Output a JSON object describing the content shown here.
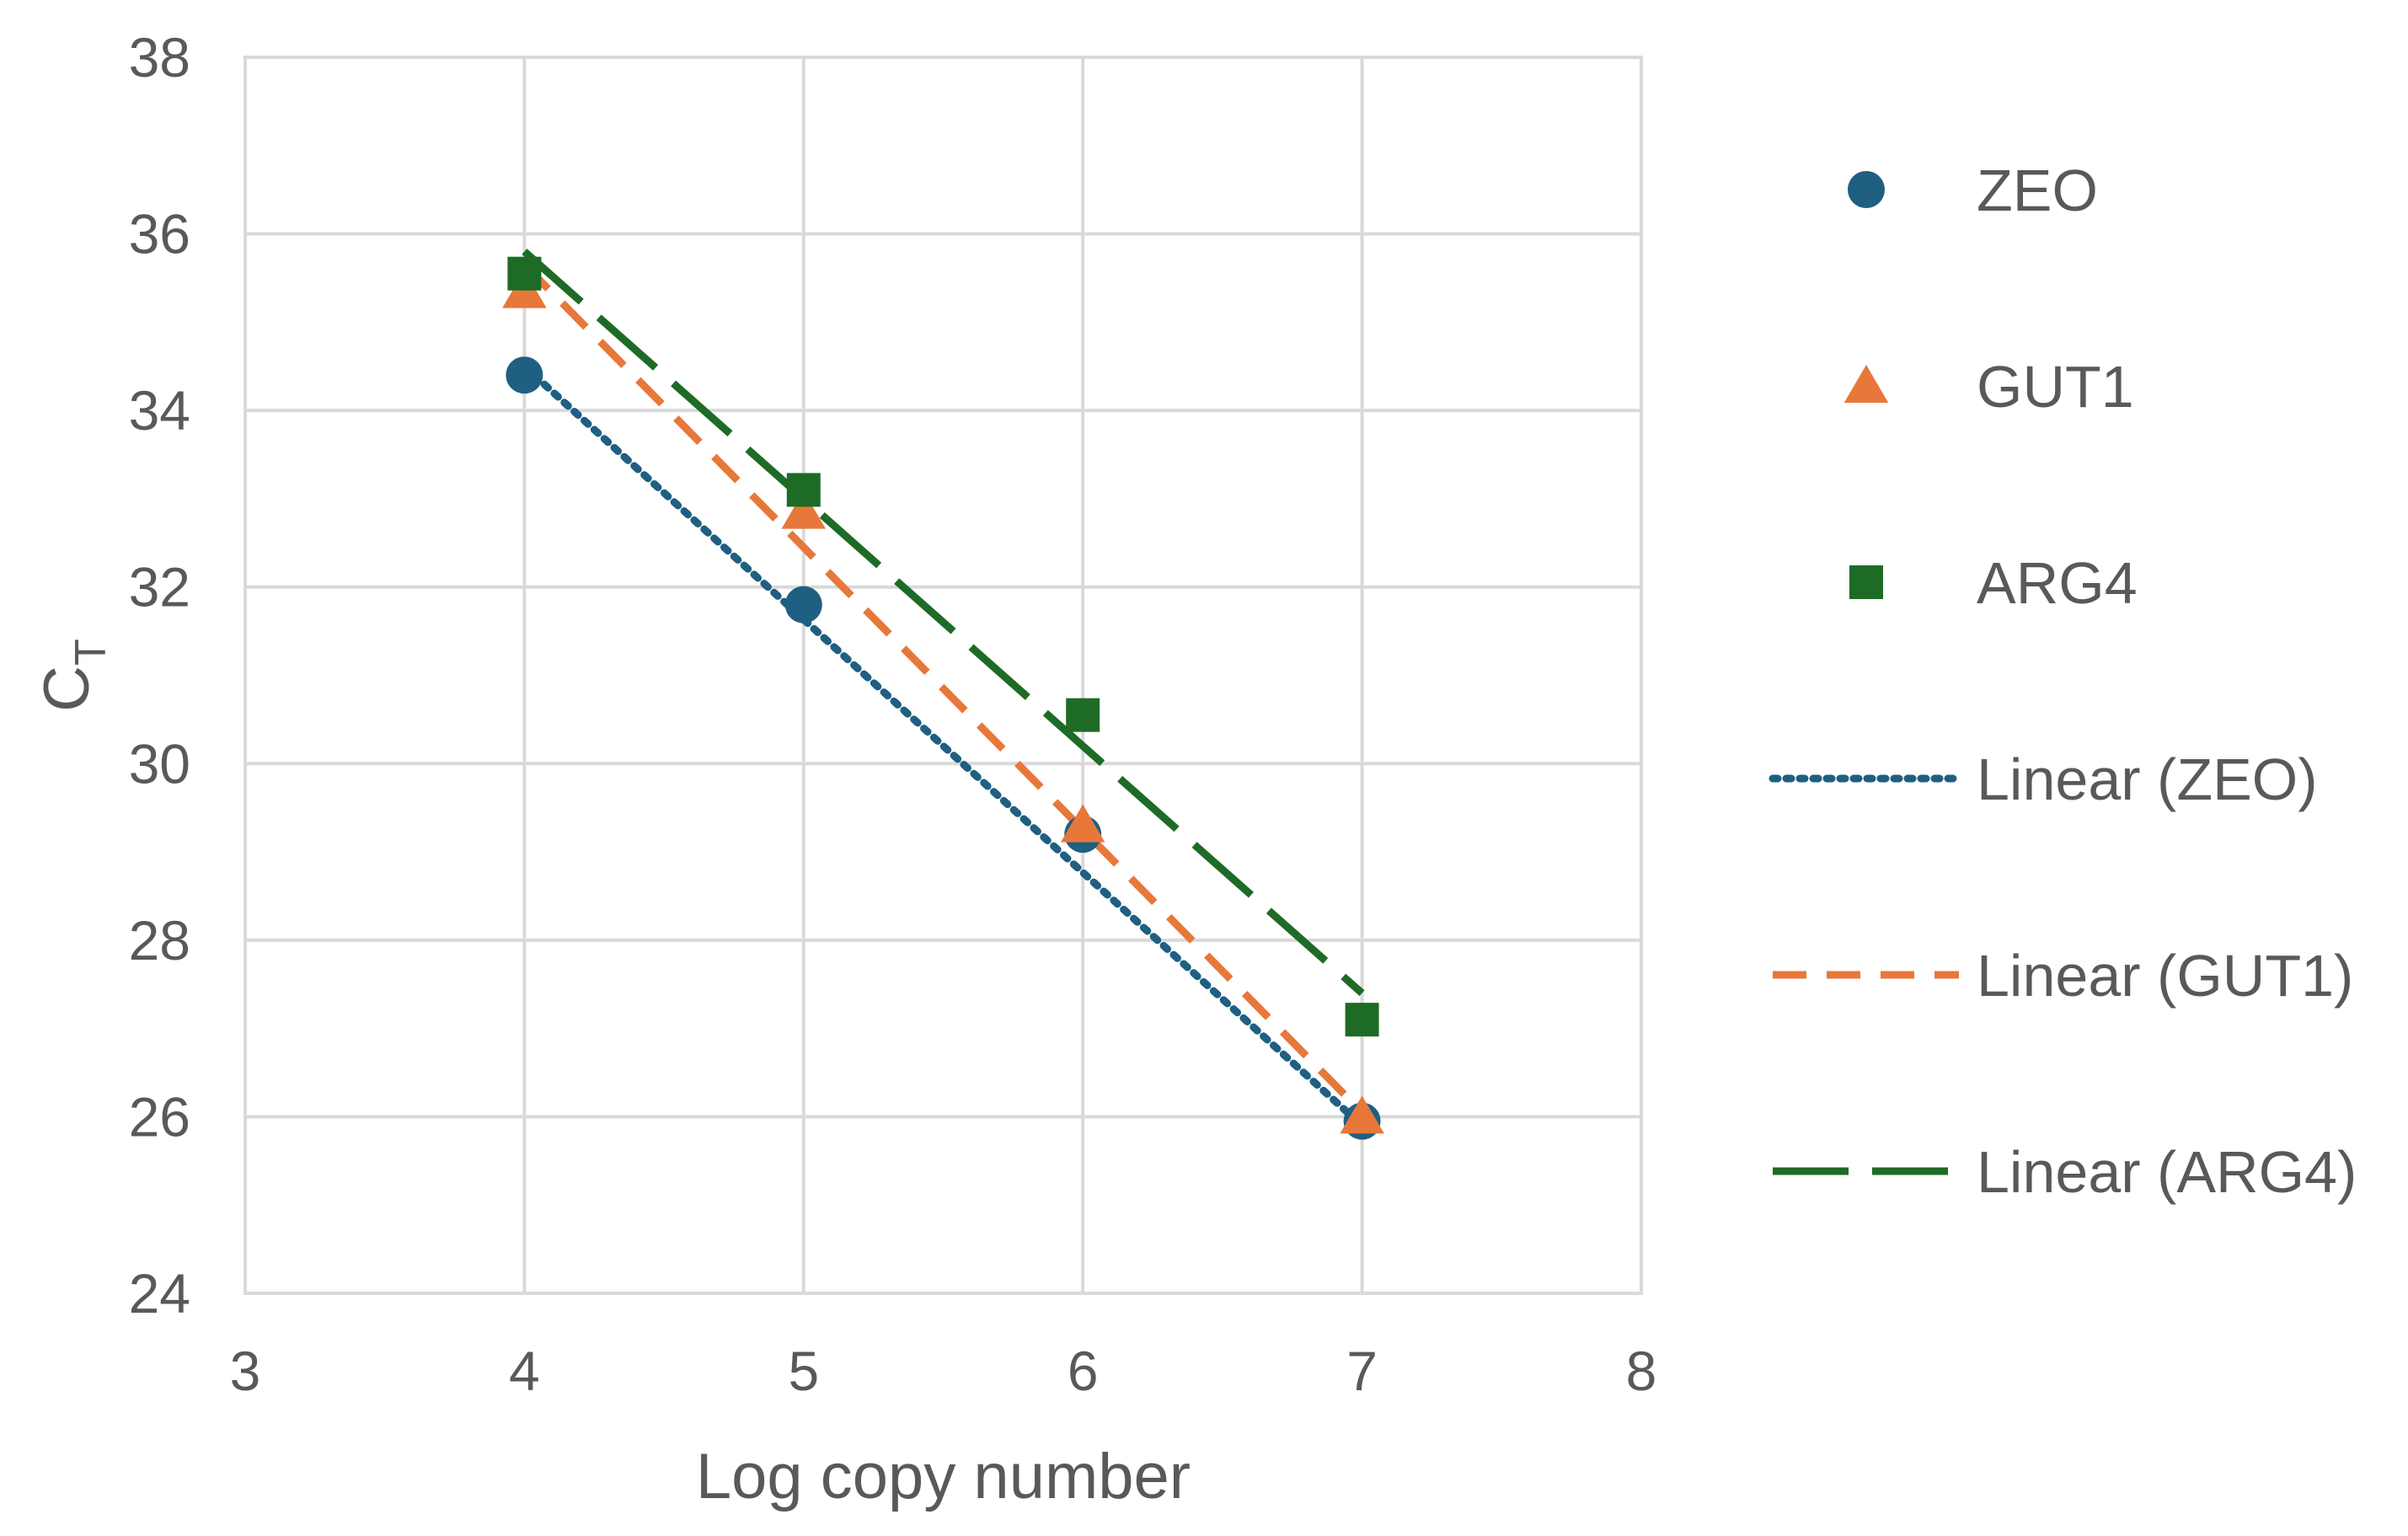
{
  "chart_data": {
    "type": "scatter",
    "xlabel": "Log copy number",
    "ylabel_main": "C",
    "ylabel_sub": "T",
    "xlim": [
      3,
      8
    ],
    "ylim": [
      24,
      38
    ],
    "xticks": [
      3,
      4,
      5,
      6,
      7,
      8
    ],
    "yticks": [
      24,
      26,
      28,
      30,
      32,
      34,
      36,
      38
    ],
    "grid": true,
    "legend_position": "right",
    "series": [
      {
        "name": "ZEO",
        "marker": "circle",
        "color": "#1f5f82",
        "x": [
          4,
          5,
          6,
          7
        ],
        "y": [
          34.4,
          31.8,
          29.2,
          25.95
        ]
      },
      {
        "name": "GUT1",
        "marker": "triangle",
        "color": "#e8773a",
        "x": [
          4,
          5,
          6,
          7
        ],
        "y": [
          35.35,
          32.85,
          29.3,
          26.0
        ]
      },
      {
        "name": "ARG4",
        "marker": "square",
        "color": "#1e6b26",
        "x": [
          4,
          5,
          6,
          7
        ],
        "y": [
          35.55,
          33.1,
          30.55,
          27.1
        ]
      }
    ],
    "trendlines": [
      {
        "name": "Linear (ZEO)",
        "color": "#1f5f82",
        "style": "dotted",
        "x": [
          4,
          7
        ],
        "y": [
          34.5,
          25.9
        ]
      },
      {
        "name": "Linear (GUT1)",
        "color": "#e8773a",
        "style": "dashed",
        "x": [
          4,
          7
        ],
        "y": [
          35.65,
          26.05
        ]
      },
      {
        "name": "Linear (ARG4)",
        "color": "#1e6b26",
        "style": "longdash",
        "x": [
          4,
          7
        ],
        "y": [
          35.8,
          27.4
        ]
      }
    ]
  }
}
